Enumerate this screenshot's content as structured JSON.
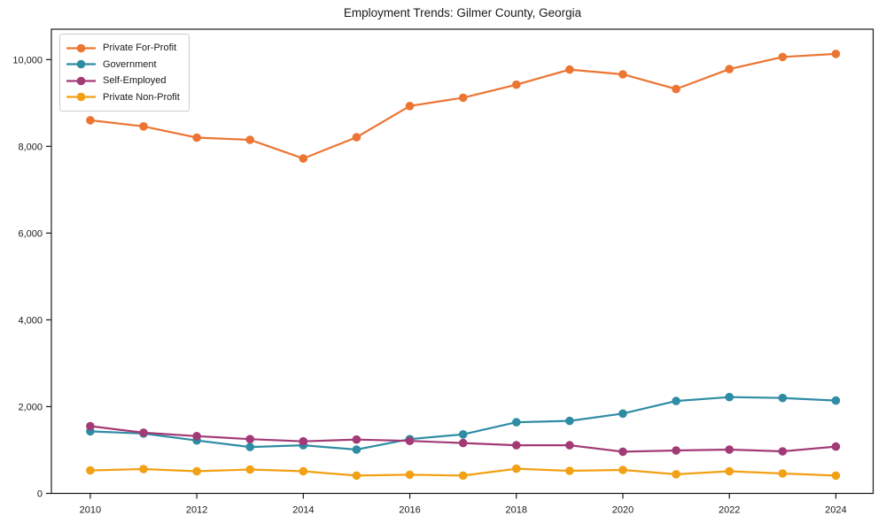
{
  "chart_data": {
    "type": "line",
    "title": "Employment Trends: Gilmer County, Georgia",
    "xlabel": "",
    "ylabel": "",
    "grid": false,
    "legend_position": "upper-left",
    "x": [
      2010,
      2011,
      2012,
      2013,
      2014,
      2015,
      2016,
      2017,
      2018,
      2019,
      2020,
      2021,
      2022,
      2023,
      2024
    ],
    "xlim": [
      2009.27,
      2024.7
    ],
    "ylim": [
      0,
      10700
    ],
    "x_tick_values": [
      2010,
      2012,
      2014,
      2016,
      2018,
      2020,
      2022,
      2024
    ],
    "x_tick_labels": [
      "2010",
      "2012",
      "2014",
      "2016",
      "2018",
      "2020",
      "2022",
      "2024"
    ],
    "y_tick_values": [
      0,
      2000,
      4000,
      6000,
      8000,
      10000
    ],
    "y_tick_labels": [
      "0",
      "2,000",
      "4,000",
      "6,000",
      "8,000",
      "10,000"
    ],
    "series": [
      {
        "name": "Private For-Profit",
        "color": "#EC7533",
        "values": [
          8600,
          8460,
          8200,
          8150,
          7720,
          8210,
          8930,
          9120,
          9420,
          9770,
          9660,
          9320,
          9780,
          10060,
          10130
        ]
      },
      {
        "name": "Government",
        "color": "#2E8CA4",
        "values": [
          1430,
          1380,
          1220,
          1070,
          1110,
          1010,
          1250,
          1360,
          1640,
          1670,
          1840,
          2130,
          2220,
          2200,
          2140
        ]
      },
      {
        "name": "Self-Employed",
        "color": "#A23A76",
        "values": [
          1550,
          1400,
          1320,
          1250,
          1200,
          1240,
          1210,
          1160,
          1110,
          1110,
          960,
          990,
          1010,
          970,
          1080
        ]
      },
      {
        "name": "Private Non-Profit",
        "color": "#F2A014",
        "values": [
          530,
          560,
          510,
          550,
          510,
          410,
          430,
          410,
          570,
          520,
          540,
          440,
          510,
          460,
          410
        ]
      }
    ]
  }
}
